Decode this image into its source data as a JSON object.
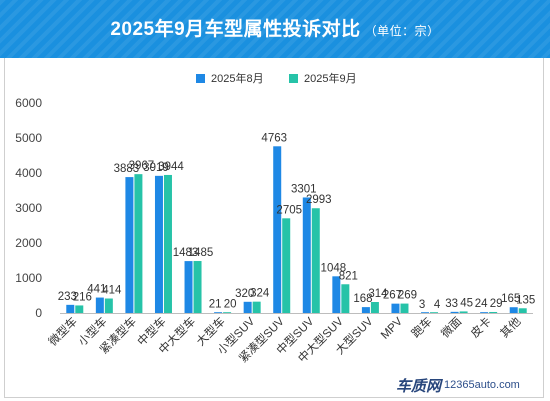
{
  "header": {
    "title": "2025年9月车型属性投诉对比",
    "unit": "（单位：宗）"
  },
  "colors": {
    "aug": "#1e88e5",
    "sep": "#26c3a8",
    "header_bg": "#1a90df"
  },
  "chart_data": {
    "type": "bar",
    "title": "2025年9月车型属性投诉对比",
    "subtitle": "（单位：宗）",
    "categories": [
      "微型车",
      "小型车",
      "紧凑型车",
      "中型车",
      "中大型车",
      "大型车",
      "小型SUV",
      "紧凑型SUV",
      "中型SUV",
      "中大型SUV",
      "大型SUV",
      "MPV",
      "跑车",
      "微面",
      "皮卡",
      "其他"
    ],
    "series": [
      {
        "name": "2025年8月",
        "color": "#1e88e5",
        "values": [
          233,
          441,
          3883,
          3919,
          1483,
          21,
          320,
          4763,
          3301,
          1048,
          168,
          267,
          3,
          33,
          24,
          165
        ]
      },
      {
        "name": "2025年9月",
        "color": "#26c3a8",
        "values": [
          216,
          414,
          3967,
          3944,
          1485,
          20,
          324,
          2705,
          2993,
          821,
          314,
          269,
          4,
          45,
          29,
          135
        ]
      }
    ],
    "ylim": [
      0,
      6000
    ],
    "yticks": [
      0,
      1000,
      2000,
      3000,
      4000,
      5000,
      6000
    ],
    "legend": "top-center",
    "grid": false
  },
  "watermark": {
    "logo": "车质网",
    "site": "12365auto.com"
  }
}
